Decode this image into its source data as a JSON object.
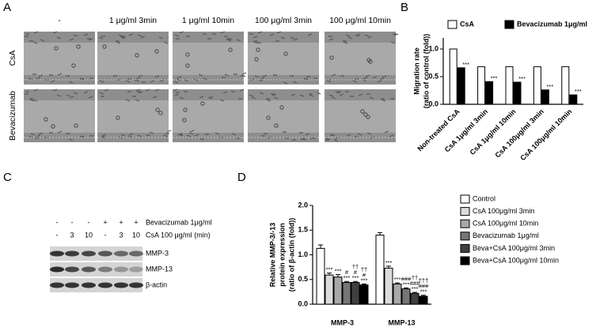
{
  "panel_labels": [
    "A",
    "B",
    "C",
    "D"
  ],
  "figure_a": {
    "columns": [
      "-",
      "1 μg/ml 3min",
      "1 μg/ml 10min",
      "100 μg/ml 3min",
      "100 μg/ml 10min"
    ],
    "rows": [
      "CsA",
      "Bevacizumab"
    ]
  },
  "blot": {
    "treatments": [
      {
        "label": "Bevacizumab 1μg/ml",
        "lanes": [
          "-",
          "-",
          "-",
          "+",
          "+",
          "+"
        ]
      },
      {
        "label": "CsA 100 μg/ml (min)",
        "lanes": [
          "-",
          "3",
          "10",
          "-",
          "3",
          "10"
        ]
      }
    ],
    "bands": [
      "MMP-3",
      "MMP-13",
      "β-actin"
    ]
  },
  "chart_data": [
    {
      "type": "bar",
      "ylabel": [
        "Migration rate",
        "(ratio of control (fold))"
      ],
      "categories": [
        "Non-treated CsA",
        "CsA 1μg/ml 3min",
        "CsA 1μg/ml 10min",
        "CsA 100μg/ml 3min",
        "CsA 100μg/ml 10min"
      ],
      "series": [
        {
          "name": "CsA",
          "color": "#ffffff",
          "values": [
            1.0,
            0.68,
            0.68,
            0.68,
            0.68
          ]
        },
        {
          "name": "Bevacizumab 1μg/ml",
          "color": "#000000",
          "values": [
            0.66,
            0.41,
            0.4,
            0.26,
            0.17
          ],
          "annotations": [
            [
              "***"
            ],
            [
              "***"
            ],
            [
              "***"
            ],
            [
              "***"
            ],
            [
              "***"
            ]
          ]
        }
      ],
      "ylim": [
        0,
        1.2
      ],
      "yticks": [
        {
          "value": 0,
          "label": "0.0"
        },
        {
          "value": 0.5,
          "label": "0.5"
        },
        {
          "value": 1,
          "label": "1.0"
        }
      ],
      "legend": "top"
    },
    {
      "type": "bar",
      "ylabel": [
        "Relative MMP-3/-13",
        "protein expression",
        "(ratio of β-actin (fold))"
      ],
      "categories": [
        "MMP-3",
        "MMP-13"
      ],
      "series": [
        {
          "name": "Control",
          "color": "#ffffff",
          "values": [
            1.13,
            1.4
          ],
          "errors": [
            0.07,
            0.05
          ]
        },
        {
          "name": "CsA 100μg/ml 3min",
          "color": "#dcdcdc",
          "values": [
            0.59,
            0.73
          ],
          "errors": [
            0.04,
            0.04
          ],
          "annotations": [
            [
              "***"
            ],
            [
              "***"
            ]
          ]
        },
        {
          "name": "CsA 100μg/ml 10min",
          "color": "#a8a8a8",
          "values": [
            0.55,
            0.41
          ],
          "errors": [
            0.05,
            0.02
          ],
          "annotations": [
            [
              "***"
            ],
            [
              "***"
            ]
          ]
        },
        {
          "name": "Bevacizumab 1μg/ml",
          "color": "#767676",
          "values": [
            0.44,
            0.31
          ],
          "errors": [
            0.02,
            0.02
          ],
          "annotations": [
            [
              "#",
              "***"
            ],
            [
              "###",
              "***"
            ]
          ]
        },
        {
          "name": "Beva+CsA 100μg/ml 3min",
          "color": "#404040",
          "values": [
            0.44,
            0.22
          ],
          "errors": [
            0.02,
            0.02
          ],
          "annotations": [
            [
              "††",
              "#",
              "***"
            ],
            [
              "††",
              "###",
              "***"
            ]
          ]
        },
        {
          "name": "Beva+CsA 100μg/ml 10min",
          "color": "#000000",
          "values": [
            0.39,
            0.16
          ],
          "errors": [
            0.02,
            0.02
          ],
          "annotations": [
            [
              "††",
              "#",
              "***"
            ],
            [
              "†††",
              "###",
              "***"
            ]
          ]
        }
      ],
      "ylim": [
        0,
        2.0
      ],
      "yticks": [
        {
          "value": 0,
          "label": "0.0"
        },
        {
          "value": 0.5,
          "label": "0.5"
        },
        {
          "value": 1,
          "label": "1.0"
        },
        {
          "value": 1.5,
          "label": "1.5"
        },
        {
          "value": 2,
          "label": "2.0"
        }
      ],
      "legend": "right"
    }
  ]
}
